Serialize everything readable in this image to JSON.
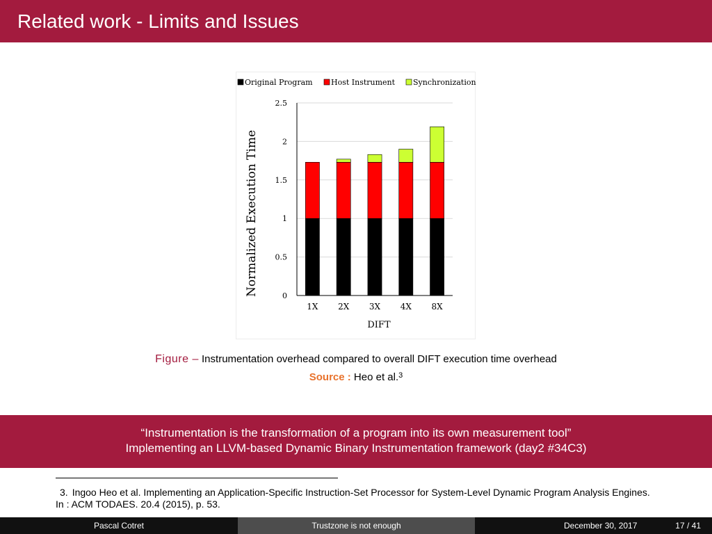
{
  "slide": {
    "title": "Related work - Limits and Issues"
  },
  "chart_data": {
    "type": "bar",
    "stacked": true,
    "categories": [
      "1X",
      "2X",
      "3X",
      "4X",
      "8X"
    ],
    "series": [
      {
        "name": "Original Program",
        "color": "#000000",
        "values": [
          1,
          1,
          1,
          1,
          1
        ]
      },
      {
        "name": "Host Instrument",
        "color": "#ff0000",
        "values": [
          0.73,
          0.73,
          0.73,
          0.73,
          0.73
        ]
      },
      {
        "name": "Synchronization",
        "color": "#ccff33",
        "values": [
          0,
          0.04,
          0.1,
          0.17,
          0.46
        ]
      }
    ],
    "xlabel": "DIFT",
    "ylabel": "Normalized Execution Time",
    "ylim": [
      0,
      2.5
    ],
    "yticks": [
      "0",
      "0.5",
      "1",
      "1.5",
      "2",
      "2.5"
    ],
    "grid": true,
    "legend_position": "top"
  },
  "caption": {
    "figure_label": "Figure –",
    "text": "Instrumentation overhead compared to overall DIFT execution time overhead",
    "source_label": "Source :",
    "source_text": "Heo et al.",
    "source_ref": "3"
  },
  "quote": {
    "line1": "“Instrumentation is the transformation of a program into its own measurement tool”",
    "line2": "Implementing an LLVM-based Dynamic Binary Instrumentation framework (day2 #34C3)"
  },
  "footnote": {
    "number": "3.",
    "text": "Ingoo Heo et al. Implementing an Application-Specific Instruction-Set Processor for System-Level Dynamic Program Analysis Engines. In : ACM TODAES. 20.4 (2015), p. 53."
  },
  "footer": {
    "author": "Pascal Cotret",
    "talk_title": "Trustzone is not enough",
    "date": "December 30, 2017",
    "page": "17 / 41"
  }
}
